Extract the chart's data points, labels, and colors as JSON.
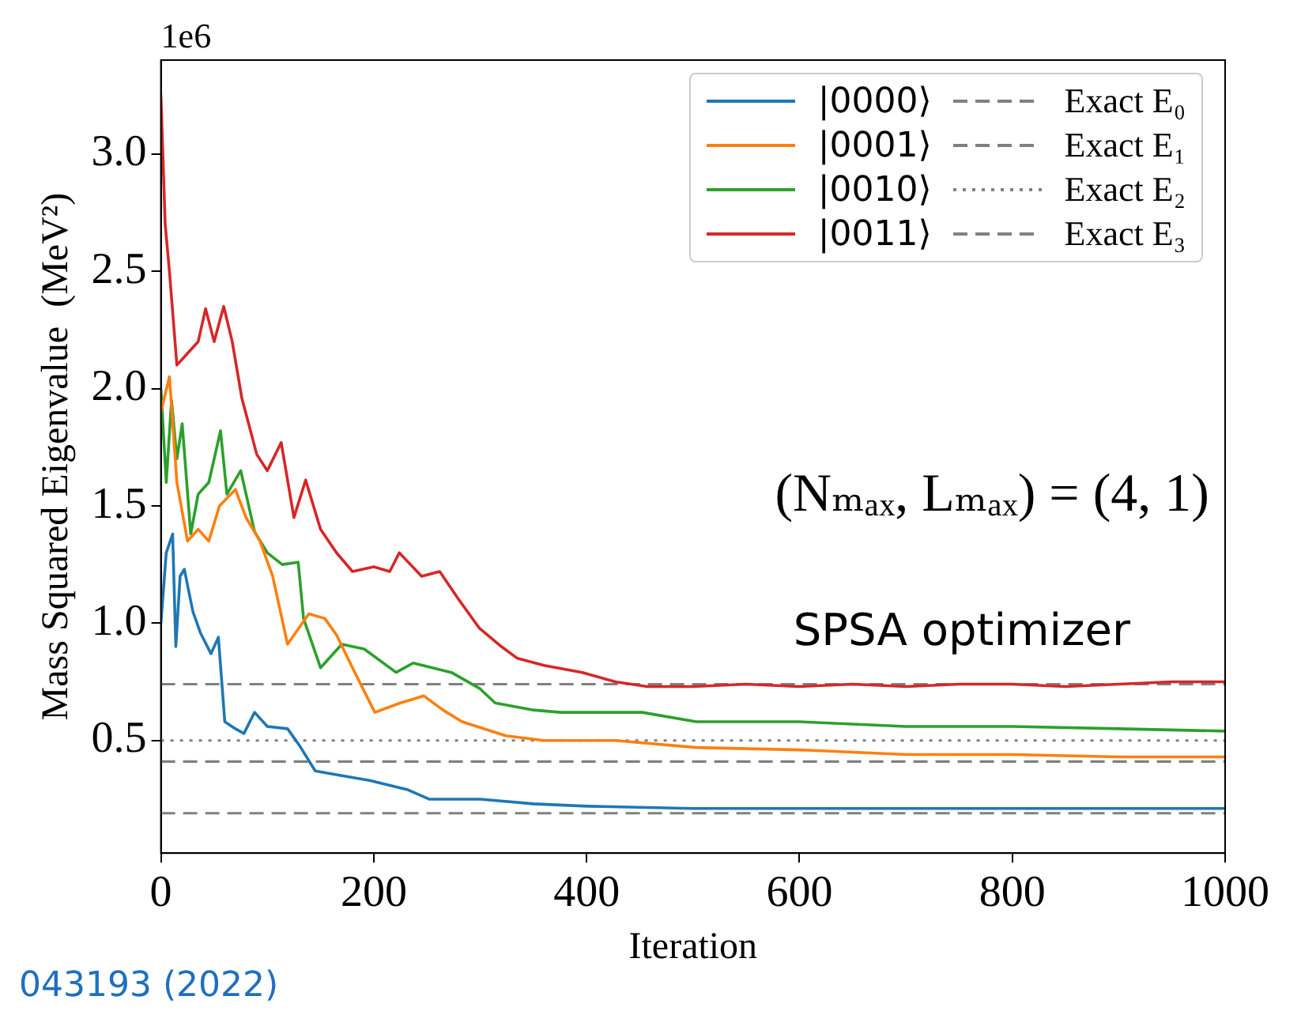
{
  "chart_data": {
    "type": "line",
    "xlabel": "Iteration",
    "ylabel": "Mass Squared Eigenvalue  (MeV²)",
    "annotations": [
      "1e6",
      "(Nₘₐₓ, Lₘₐₓ) = (4, 1)",
      "SPSA optimizer",
      "043193 (2022)"
    ],
    "xlim": [
      0,
      1000
    ],
    "xticks": [
      0,
      200,
      400,
      600,
      800,
      1000
    ],
    "ylim": [
      0.02,
      3.4
    ],
    "yticks": [
      {
        "value": 0.5,
        "label": "0.5"
      },
      {
        "value": 1,
        "label": "1.0"
      },
      {
        "value": 1.5,
        "label": "1.5"
      },
      {
        "value": 2,
        "label": "2.0"
      },
      {
        "value": 2.5,
        "label": "2.5"
      },
      {
        "value": 3,
        "label": "3.0"
      }
    ],
    "legend": "top right",
    "marker": "none",
    "line_style": "solid",
    "series": [
      {
        "name": "|0000⟩",
        "color": "#1f77b4",
        "x": [
          0,
          5,
          11,
          14,
          18,
          22,
          30,
          37,
          47,
          54,
          60,
          70,
          78,
          88,
          100,
          119,
          130,
          145,
          170,
          196,
          232,
          252,
          300,
          350,
          401,
          500,
          600,
          700,
          800,
          900,
          1000
        ],
        "values": [
          1.0,
          1.3,
          1.38,
          0.9,
          1.2,
          1.23,
          1.05,
          0.96,
          0.87,
          0.94,
          0.58,
          0.55,
          0.53,
          0.62,
          0.56,
          0.55,
          0.48,
          0.37,
          0.35,
          0.33,
          0.29,
          0.25,
          0.25,
          0.23,
          0.22,
          0.21,
          0.21,
          0.21,
          0.21,
          0.21,
          0.21
        ]
      },
      {
        "name": "|0001⟩",
        "color": "#ff7f0e",
        "x": [
          0,
          8,
          15,
          25,
          35,
          45,
          55,
          70,
          80,
          93,
          105,
          119,
          139,
          154,
          165,
          180,
          201,
          225,
          247,
          265,
          283,
          324,
          360,
          427,
          503,
          600,
          700,
          800,
          900,
          1000
        ],
        "values": [
          1.9,
          2.05,
          1.6,
          1.35,
          1.4,
          1.35,
          1.5,
          1.57,
          1.45,
          1.35,
          1.2,
          0.91,
          1.04,
          1.02,
          0.95,
          0.81,
          0.62,
          0.66,
          0.69,
          0.63,
          0.58,
          0.52,
          0.5,
          0.5,
          0.47,
          0.46,
          0.44,
          0.44,
          0.43,
          0.43
        ]
      },
      {
        "name": "|0010⟩",
        "color": "#2ca02c",
        "x": [
          0,
          5,
          10,
          15,
          20,
          28,
          35,
          45,
          56,
          62,
          75,
          88,
          100,
          114,
          129,
          134,
          150,
          170,
          191,
          221,
          237,
          273,
          300,
          314,
          350,
          375,
          452,
          503,
          600,
          700,
          800,
          900,
          1000
        ],
        "values": [
          2.0,
          1.6,
          1.95,
          1.7,
          1.85,
          1.38,
          1.55,
          1.6,
          1.82,
          1.55,
          1.65,
          1.39,
          1.3,
          1.25,
          1.26,
          1.02,
          0.81,
          0.91,
          0.89,
          0.79,
          0.83,
          0.79,
          0.72,
          0.66,
          0.63,
          0.62,
          0.62,
          0.58,
          0.58,
          0.56,
          0.56,
          0.55,
          0.54
        ]
      },
      {
        "name": "|0011⟩",
        "color": "#d62728",
        "x": [
          0,
          4,
          8,
          15,
          25,
          35,
          42,
          50,
          59,
          67,
          76,
          90,
          100,
          113,
          125,
          136,
          150,
          165,
          180,
          200,
          215,
          224,
          245,
          262,
          280,
          299,
          320,
          335,
          360,
          396,
          427,
          457,
          500,
          550,
          600,
          650,
          700,
          750,
          800,
          850,
          900,
          950,
          1000
        ],
        "values": [
          3.25,
          2.7,
          2.5,
          2.1,
          2.15,
          2.2,
          2.34,
          2.2,
          2.35,
          2.2,
          1.96,
          1.72,
          1.65,
          1.77,
          1.45,
          1.61,
          1.4,
          1.3,
          1.22,
          1.24,
          1.22,
          1.3,
          1.2,
          1.22,
          1.1,
          0.98,
          0.9,
          0.85,
          0.82,
          0.79,
          0.75,
          0.73,
          0.73,
          0.74,
          0.73,
          0.74,
          0.73,
          0.74,
          0.74,
          0.73,
          0.74,
          0.75,
          0.75
        ]
      }
    ],
    "ref_lines": [
      {
        "axis": "y",
        "value": 0.19,
        "label": "Exact E₀",
        "color": "#808080",
        "line_style": "dashed"
      },
      {
        "axis": "y",
        "value": 0.41,
        "label": "Exact E₁",
        "color": "#808080",
        "line_style": "dashed"
      },
      {
        "axis": "y",
        "value": 0.5,
        "label": "Exact E₂",
        "color": "#808080",
        "line_style": "dotted"
      },
      {
        "axis": "y",
        "value": 0.74,
        "label": "Exact E₃",
        "color": "#808080",
        "line_style": "dashed"
      }
    ]
  }
}
